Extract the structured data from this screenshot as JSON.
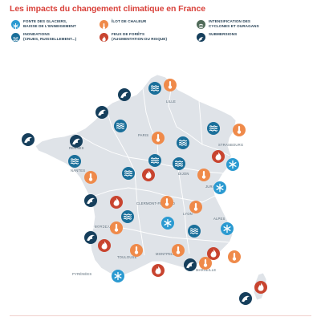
{
  "title": "Les impacts du changement climatique en France",
  "colors": {
    "navy": "#1a4a6b",
    "navy_dark": "#163f5c",
    "teal": "#2b9ad1",
    "orange": "#ef8a4a",
    "red": "#c8442f",
    "gray": "#4f6a58",
    "land": "#dfe3e8",
    "border": "#ffffff",
    "title": "#d9413a"
  },
  "legend": [
    {
      "id": "snow",
      "color": "#2b9ad1",
      "icon": "snowflake-icon",
      "lines": [
        "FONTE DES GLACIERS,",
        "BAISSE DE L'ENNEIGEMENT"
      ]
    },
    {
      "id": "heat",
      "color": "#ef8a4a",
      "icon": "thermometer-icon",
      "lines": [
        "ÎLOT DE CHALEUR"
      ]
    },
    {
      "id": "cyclone",
      "color": "#4f6a58",
      "icon": "cyclone-icon",
      "lines": [
        "INTENSIFICATION DES",
        "CYCLONES ET OURAGANS"
      ]
    },
    {
      "id": "flood",
      "color": "#1a6f9a",
      "icon": "waves-icon",
      "lines": [
        "INONDATIONS",
        "(CRUES, RUISSELLEMENT...)"
      ]
    },
    {
      "id": "fire",
      "color": "#c8442f",
      "icon": "flame-icon",
      "lines": [
        "FEUX DE FORÊTS",
        "(AUGMENTATION DU RISQUE)"
      ]
    },
    {
      "id": "submersion",
      "color": "#163f5c",
      "icon": "wave-icon",
      "lines": [
        "SUBMERSIONS"
      ]
    }
  ],
  "cities": [
    {
      "name": "LILLE"
    },
    {
      "name": "PARIS"
    },
    {
      "name": "STRASBOURG"
    },
    {
      "name": "RENNES"
    },
    {
      "name": "NANTES"
    },
    {
      "name": "DIJON"
    },
    {
      "name": "LYON"
    },
    {
      "name": "CLERMONT-FERRAND"
    },
    {
      "name": "BORDEAUX"
    },
    {
      "name": "MONTPELLIER"
    },
    {
      "name": "TOULOUSE"
    },
    {
      "name": "MARSEILLE"
    },
    {
      "name": "ALPES"
    },
    {
      "name": "JURA"
    },
    {
      "name": "PYRÉNÉES"
    }
  ]
}
